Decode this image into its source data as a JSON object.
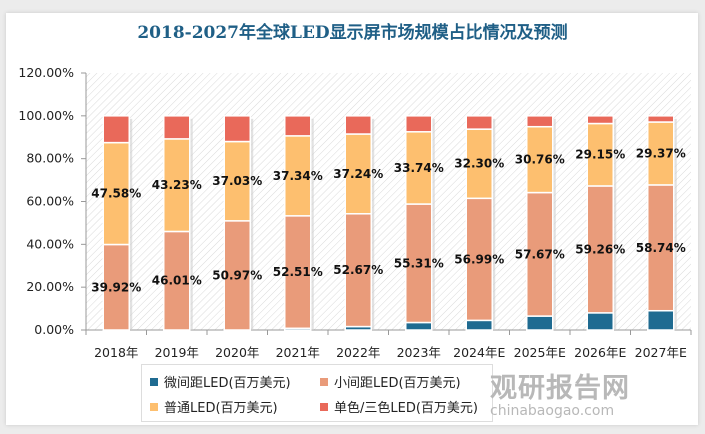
{
  "chart_data": {
    "type": "bar",
    "stacked": true,
    "title": "2018-2027年全球LED显示屏市场规模占比情况及预测",
    "xlabel": "",
    "ylabel": "",
    "ylim": [
      0,
      120
    ],
    "yticks": [
      "0.00%",
      "20.00%",
      "40.00%",
      "60.00%",
      "80.00%",
      "100.00%",
      "120.00%"
    ],
    "categories": [
      "2018年",
      "2019年",
      "2020年",
      "2021年",
      "2022年",
      "2023年",
      "2024年E",
      "2025年E",
      "2026年E",
      "2027年E"
    ],
    "series": [
      {
        "name": "微间距LED(百万美元)",
        "color": "#1f6b91",
        "values": [
          0,
          0,
          0,
          0.8,
          1.6,
          3.5,
          4.5,
          6.5,
          8.0,
          9.0
        ],
        "labels": []
      },
      {
        "name": "小间距LED(百万美元)",
        "color": "#e99b7a",
        "values": [
          39.92,
          46.01,
          50.97,
          52.51,
          52.67,
          55.31,
          56.99,
          57.67,
          59.26,
          58.74
        ],
        "labels": [
          "39.92%",
          "46.01%",
          "50.97%",
          "52.51%",
          "52.67%",
          "55.31%",
          "56.99%",
          "57.67%",
          "59.26%",
          "58.74%"
        ]
      },
      {
        "name": "普通LED(百万美元)",
        "color": "#fdbf6f",
        "values": [
          47.58,
          43.23,
          37.03,
          37.34,
          37.24,
          33.74,
          32.3,
          30.76,
          29.15,
          29.37
        ],
        "labels": [
          "47.58%",
          "43.23%",
          "37.03%",
          "37.34%",
          "37.24%",
          "33.74%",
          "32.30%",
          "30.76%",
          "29.15%",
          "29.37%"
        ]
      },
      {
        "name": "单色/三色LED(百万美元)",
        "color": "#e9695a",
        "values": [
          12.5,
          10.76,
          12.0,
          9.35,
          8.49,
          7.45,
          6.21,
          5.07,
          3.59,
          2.89
        ],
        "labels": []
      }
    ],
    "legend_position": "bottom",
    "grid": false
  },
  "watermark": {
    "main": "观研报告网",
    "sub": "chinabaogao.com"
  }
}
